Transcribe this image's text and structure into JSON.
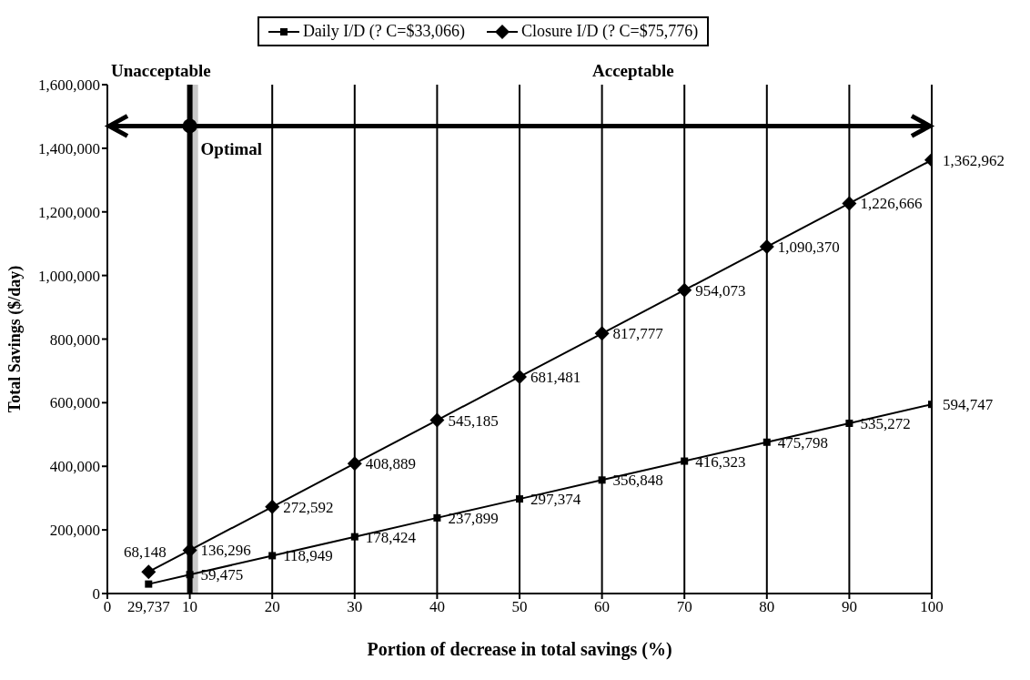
{
  "chart_data": {
    "type": "line",
    "xlabel": "Portion of decrease in total savings (%)",
    "ylabel": "Total Savings ($/day)",
    "x": [
      5,
      10,
      20,
      30,
      40,
      50,
      60,
      70,
      80,
      90,
      100
    ],
    "series": [
      {
        "name": "Daily I/D (? C=$33,066)",
        "color": "#000000",
        "marker": "square",
        "values": [
          29737,
          59475,
          118949,
          178424,
          237899,
          297374,
          356848,
          416323,
          475798,
          535272,
          594747
        ],
        "value_labels": [
          "29,737",
          "59,475",
          "118,949",
          "178,424",
          "237,899",
          "297,374",
          "356,848",
          "416,323",
          "475,798",
          "535,272",
          "594,747"
        ]
      },
      {
        "name": "Closure I/D (? C=$75,776)",
        "color": "#000000",
        "marker": "diamond",
        "values": [
          68148,
          136296,
          272592,
          408889,
          545185,
          681481,
          817777,
          954073,
          1090370,
          1226666,
          1362962
        ],
        "value_labels": [
          "68,148",
          "136,296",
          "272,592",
          "408,889",
          "545,185",
          "681,481",
          "817,777",
          "954,073",
          "1,090,370",
          "1,226,666",
          "1,362,962"
        ]
      }
    ],
    "xlim": [
      0,
      100
    ],
    "xticks": [
      0,
      10,
      20,
      30,
      40,
      50,
      60,
      70,
      80,
      90,
      100
    ],
    "ylim": [
      0,
      1600000
    ],
    "yticks": [
      0,
      {
        "value": 200000,
        "label": "200,000"
      },
      {
        "value": 400000,
        "label": "400,000"
      },
      {
        "value": 600000,
        "label": "600,000"
      },
      {
        "value": 800000,
        "label": "800,000"
      },
      {
        "value": 1000000,
        "label": "1,000,000"
      },
      {
        "value": 1200000,
        "label": "1,200,000"
      },
      {
        "value": 1400000,
        "label": "1,400,000"
      },
      {
        "value": 1600000,
        "label": "1,600,000"
      }
    ],
    "grid": "x",
    "legend": "top",
    "line_style": "solid",
    "ref_lines": [
      {
        "axis": "x",
        "value": 10,
        "color": "#000000"
      },
      {
        "axis": "y",
        "value": 1470000,
        "color": "#000000"
      }
    ],
    "bands": [
      {
        "axis": "x",
        "from": 10,
        "to": 11,
        "color": "#c8c8c8"
      }
    ],
    "annotations": [
      "Unacceptable",
      "Acceptable",
      {
        "text": "Optimal",
        "x": 10,
        "y": 1470000
      }
    ]
  }
}
